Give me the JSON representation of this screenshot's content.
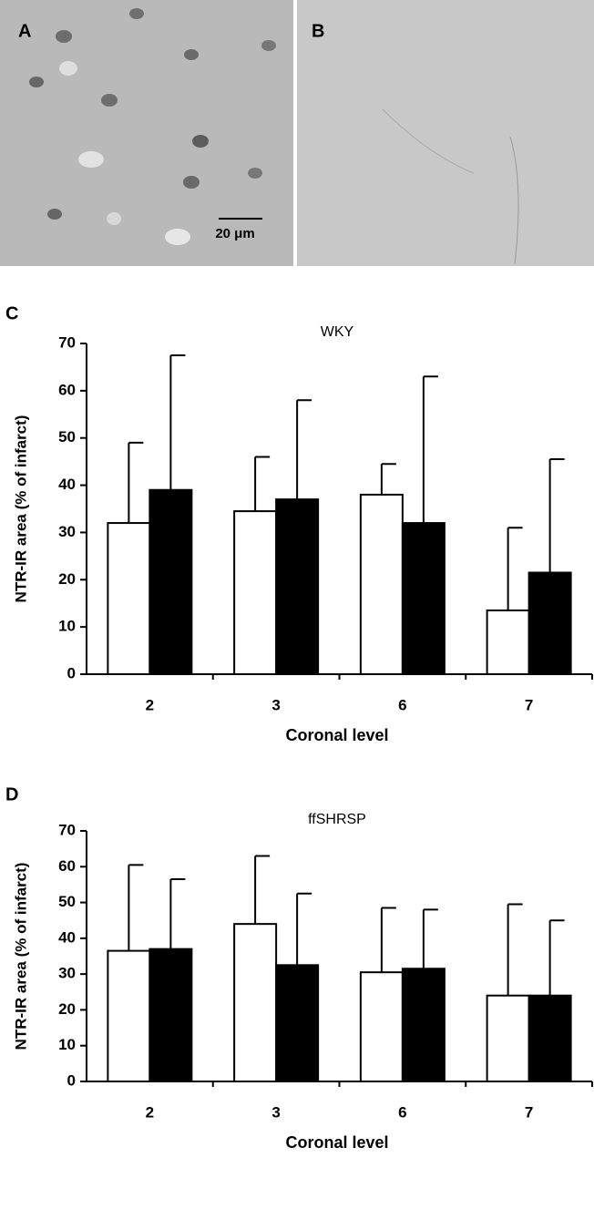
{
  "images": [
    {
      "label": "A",
      "scale_bar": "20 μm"
    },
    {
      "label": "B"
    }
  ],
  "chart_data": [
    {
      "type": "bar",
      "panel_label": "C",
      "title": "WKY",
      "x_label": "Coronal level",
      "y_label": "NTR-IR area  (% of infarct)",
      "categories": [
        "2",
        "3",
        "6",
        "7"
      ],
      "series": [
        {
          "color": "#ffffff",
          "values": [
            32,
            34.5,
            38,
            13.5
          ],
          "errors": [
            17,
            11.5,
            6.5,
            17.5
          ]
        },
        {
          "color": "#000000",
          "values": [
            39,
            37,
            32,
            21.5
          ],
          "errors": [
            28.5,
            21,
            31,
            24
          ]
        }
      ],
      "ylim": [
        0,
        70
      ],
      "yticks": [
        0,
        10,
        20,
        30,
        40,
        50,
        60,
        70
      ]
    },
    {
      "type": "bar",
      "panel_label": "D",
      "title": "ffSHRSP",
      "x_label": "Coronal level",
      "y_label": "NTR-IR area  (% of infarct)",
      "categories": [
        "2",
        "3",
        "6",
        "7"
      ],
      "series": [
        {
          "color": "#ffffff",
          "values": [
            36.5,
            44,
            30.5,
            24
          ],
          "errors": [
            24,
            19,
            18,
            25.5
          ]
        },
        {
          "color": "#000000",
          "values": [
            37,
            32.5,
            31.5,
            24
          ],
          "errors": [
            19.5,
            20,
            16.5,
            21
          ]
        }
      ],
      "ylim": [
        0,
        70
      ],
      "yticks": [
        0,
        10,
        20,
        30,
        40,
        50,
        60,
        70
      ]
    }
  ]
}
